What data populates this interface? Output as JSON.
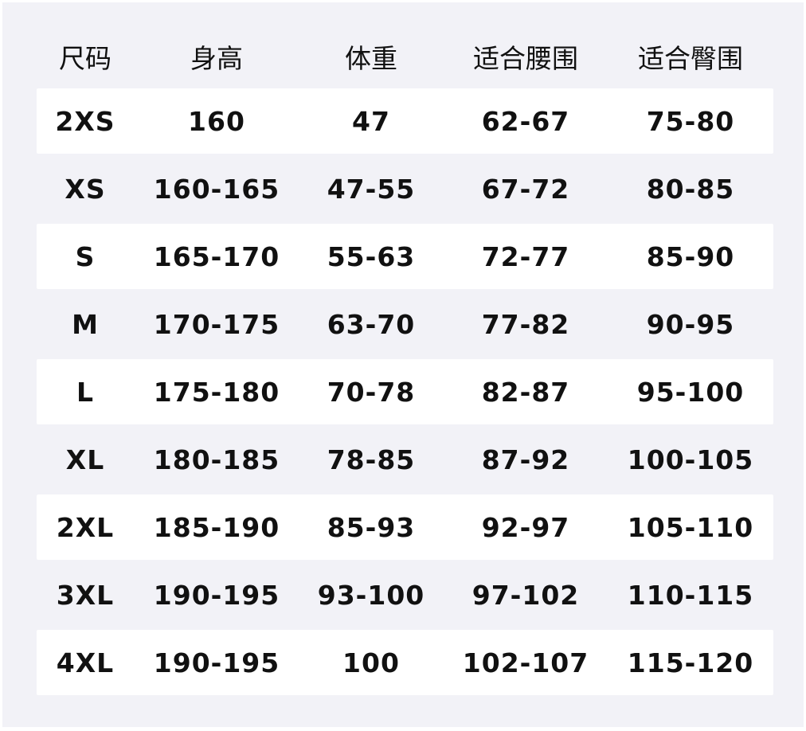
{
  "table": {
    "headers": [
      "尺码",
      "身高",
      "体重",
      "适合腰围",
      "适合臀围"
    ],
    "rows": [
      [
        "2XS",
        "160",
        "47",
        "62-67",
        "75-80"
      ],
      [
        "XS",
        "160-165",
        "47-55",
        "67-72",
        "80-85"
      ],
      [
        "S",
        "165-170",
        "55-63",
        "72-77",
        "85-90"
      ],
      [
        "M",
        "170-175",
        "63-70",
        "77-82",
        "90-95"
      ],
      [
        "L",
        "175-180",
        "70-78",
        "82-87",
        "95-100"
      ],
      [
        "XL",
        "180-185",
        "78-85",
        "87-92",
        "100-105"
      ],
      [
        "2XL",
        "185-190",
        "85-93",
        "92-97",
        "105-110"
      ],
      [
        "3XL",
        "190-195",
        "93-100",
        "97-102",
        "110-115"
      ],
      [
        "4XL",
        "190-195",
        "100",
        "102-107",
        "115-120"
      ]
    ]
  },
  "colors": {
    "background": "#f2f2f7",
    "row_highlight": "#ffffff",
    "text": "#111111"
  }
}
